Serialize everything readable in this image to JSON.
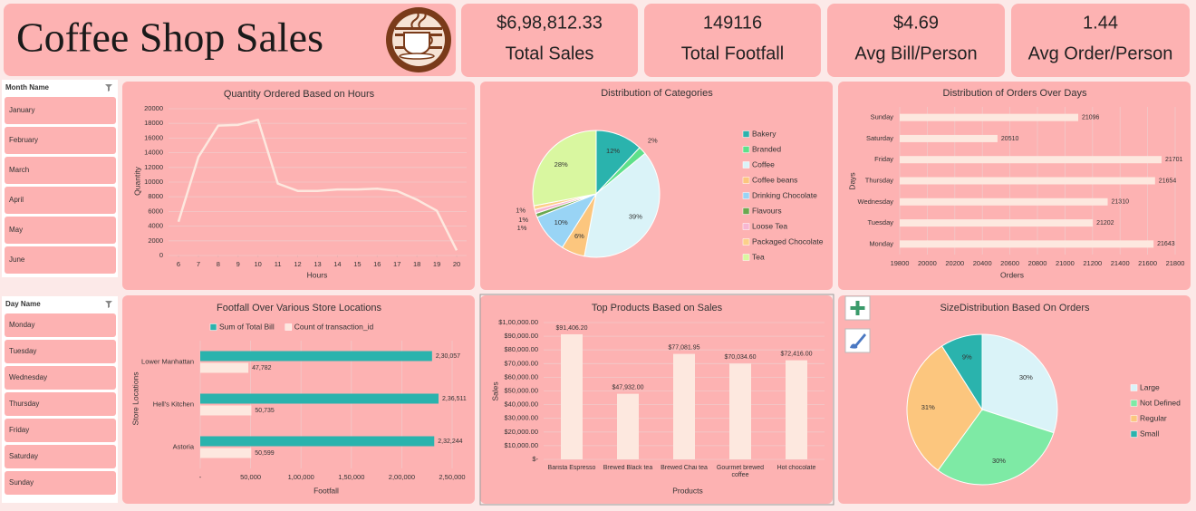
{
  "header": {
    "title": "Coffee Shop Sales"
  },
  "kpis": [
    {
      "value": "$6,98,812.33",
      "label": "Total Sales"
    },
    {
      "value": "149116",
      "label": "Total Footfall"
    },
    {
      "value": "$4.69",
      "label": "Avg Bill/Person"
    },
    {
      "value": "1.44",
      "label": "Avg Order/Person"
    }
  ],
  "slicers": [
    {
      "title": "Month Name",
      "items": [
        "January",
        "February",
        "March",
        "April",
        "May",
        "June"
      ]
    },
    {
      "title": "Day Name",
      "items": [
        "Monday",
        "Tuesday",
        "Wednesday",
        "Thursday",
        "Friday",
        "Saturday",
        "Sunday"
      ]
    }
  ],
  "chart_data": [
    {
      "type": "line",
      "title": "Quantity Ordered Based on Hours",
      "x_label": "Hours",
      "y_label": "Quantity",
      "x": [
        6,
        7,
        8,
        9,
        10,
        11,
        12,
        13,
        14,
        15,
        16,
        17,
        18,
        19,
        20
      ],
      "values": [
        4600,
        13400,
        17700,
        17800,
        18500,
        9800,
        8800,
        8800,
        9000,
        9000,
        9100,
        8800,
        7600,
        6100,
        700
      ],
      "color": "#fde8df",
      "xlim": [
        5.5,
        20.5
      ],
      "xticks": [
        6,
        7,
        8,
        9,
        10,
        11,
        12,
        13,
        14,
        15,
        16,
        17,
        18,
        19,
        20
      ],
      "ylim": [
        0,
        20000
      ],
      "yticks": [
        0,
        2000,
        4000,
        6000,
        8000,
        10000,
        12000,
        14000,
        16000,
        18000,
        20000
      ],
      "grid": true
    },
    {
      "type": "pie",
      "title": "Distribution of Categories",
      "categories": [
        "Bakery",
        "Branded",
        "Coffee",
        "Coffee beans",
        "Drinking Chocolate",
        "Flavours",
        "Loose Tea",
        "Packaged Chocolate",
        "Tea"
      ],
      "values": [
        12,
        2,
        39,
        6,
        10,
        1,
        1,
        1,
        28
      ],
      "value_labels": [
        "12%",
        "2%",
        "39%",
        "6%",
        "10%",
        "1%",
        "1%",
        "1%",
        "28%"
      ],
      "colors": [
        "#2ab3ad",
        "#5ee08a",
        "#daf3f8",
        "#fcc67e",
        "#99d4f5",
        "#6aa84f",
        "#f7b6d2",
        "#fcd08a",
        "#d9f7a0"
      ],
      "legend": "right"
    },
    {
      "type": "bar",
      "horizontal": true,
      "title": "Distribution of Orders Over Days",
      "x_label": "Orders",
      "y_label": "Days",
      "categories": [
        "Sunday",
        "Saturday",
        "Friday",
        "Thursday",
        "Wednesday",
        "Tuesday",
        "Monday"
      ],
      "values": [
        21096,
        20510,
        21701,
        21654,
        21310,
        21202,
        21643
      ],
      "color": "#fde8df",
      "xlim": [
        19800,
        21800
      ],
      "xticks": [
        19800,
        20000,
        20200,
        20400,
        20600,
        20800,
        21000,
        21200,
        21400,
        21600,
        21800
      ],
      "grid": true
    },
    {
      "type": "bar",
      "horizontal": true,
      "title": "Footfall Over Various Store Locations",
      "x_label": "Footfall",
      "y_label": "Store Locations",
      "categories": [
        "Lower Manhattan",
        "Hell's Kitchen",
        "Astoria"
      ],
      "series": [
        {
          "name": "Sum of Total Bill",
          "color": "#2ab3ad",
          "values": [
            230057,
            236511,
            232244
          ],
          "value_labels": [
            "2,30,057",
            "2,36,511",
            "2,32,244"
          ]
        },
        {
          "name": "Count of transaction_id",
          "color": "#fde8df",
          "values": [
            47782,
            50735,
            50599
          ],
          "value_labels": [
            "47,782",
            "50,735",
            "50,599"
          ]
        }
      ],
      "xlim": [
        0,
        250000
      ],
      "xticks": [
        {
          "value": 0,
          "label": "-"
        },
        {
          "value": 50000,
          "label": "50,000"
        },
        {
          "value": 100000,
          "label": "1,00,000"
        },
        {
          "value": 150000,
          "label": "1,50,000"
        },
        {
          "value": 200000,
          "label": "2,00,000"
        },
        {
          "value": 250000,
          "label": "2,50,000"
        }
      ],
      "grid": true,
      "legend": "top"
    },
    {
      "type": "bar",
      "title": "Top Products Based on Sales",
      "x_label": "Products",
      "y_label": "Sales",
      "categories": [
        "Barista Espresso",
        "Brewed Black tea",
        "Brewed Chai tea",
        "Gourmet brewed coffee",
        "Hot chocolate"
      ],
      "values": [
        91406.2,
        47932.0,
        77081.95,
        70034.6,
        72416.0
      ],
      "value_labels": [
        "$91,406.20",
        "$47,932.00",
        "$77,081.95",
        "$70,034.60",
        "$72,416.00"
      ],
      "color": "#fde8df",
      "ylim": [
        0,
        100000
      ],
      "yticks": [
        {
          "value": 0,
          "label": "$-"
        },
        {
          "value": 10000,
          "label": "$10,000.00"
        },
        {
          "value": 20000,
          "label": "$20,000.00"
        },
        {
          "value": 30000,
          "label": "$30,000.00"
        },
        {
          "value": 40000,
          "label": "$40,000.00"
        },
        {
          "value": 50000,
          "label": "$50,000.00"
        },
        {
          "value": 60000,
          "label": "$60,000.00"
        },
        {
          "value": 70000,
          "label": "$70,000.00"
        },
        {
          "value": 80000,
          "label": "$80,000.00"
        },
        {
          "value": 90000,
          "label": "$90,000.00"
        },
        {
          "value": 100000,
          "label": "$1,00,000.00"
        }
      ],
      "grid": true
    },
    {
      "type": "pie",
      "title": "SizeDistribution Based On Orders",
      "categories": [
        "Large",
        "Not Defined",
        "Regular",
        "Small"
      ],
      "values": [
        30,
        30,
        31,
        9
      ],
      "value_labels": [
        "30%",
        "30%",
        "31%",
        "9%"
      ],
      "colors": [
        "#daf3f8",
        "#7eeaa5",
        "#fcc67e",
        "#2ab3ad"
      ],
      "legend": "right"
    }
  ]
}
